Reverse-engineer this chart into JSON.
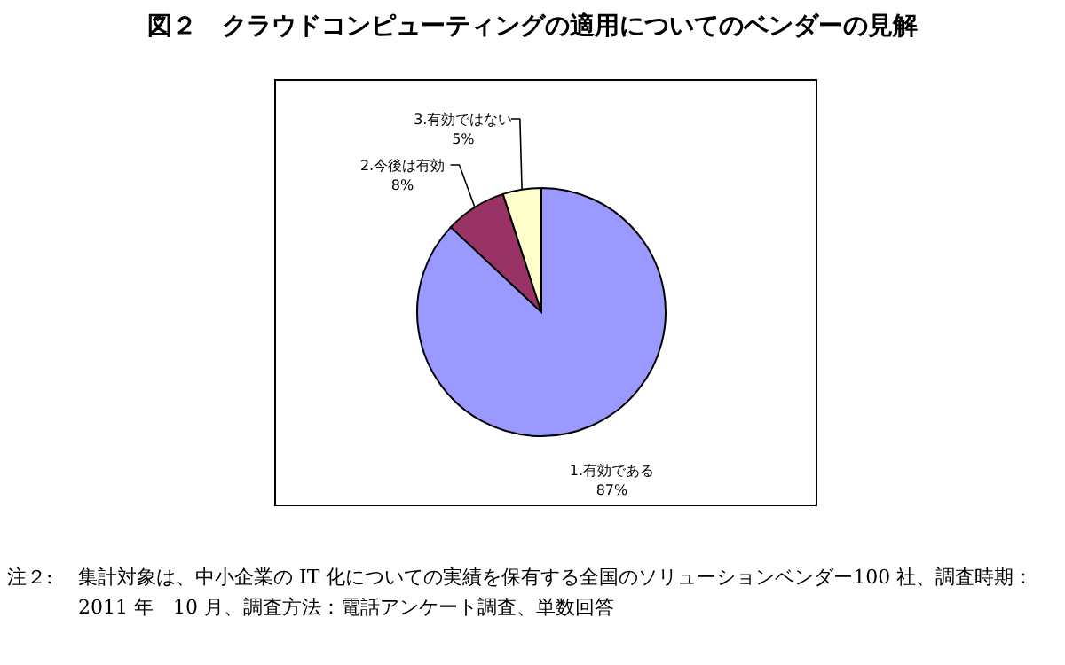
{
  "chart_data": {
    "type": "pie",
    "title": "図２　クラウドコンピューティングの適用についてのベンダーの見解",
    "categories": [
      "1.有効である",
      "2.今後は有効",
      "3.有効ではない"
    ],
    "values": [
      87,
      8,
      5
    ],
    "value_labels": [
      "87%",
      "8%",
      "5%"
    ],
    "colors": [
      "#9999ff",
      "#993366",
      "#ffffcc"
    ],
    "annotations": [
      "注２:",
      "集計対象は、中小企業の IT 化についての実績を保有する全国のソリューションベンダー100 社、調査時期：2011 年　10 月、調査方法：電話アンケート調査、単数回答"
    ]
  }
}
